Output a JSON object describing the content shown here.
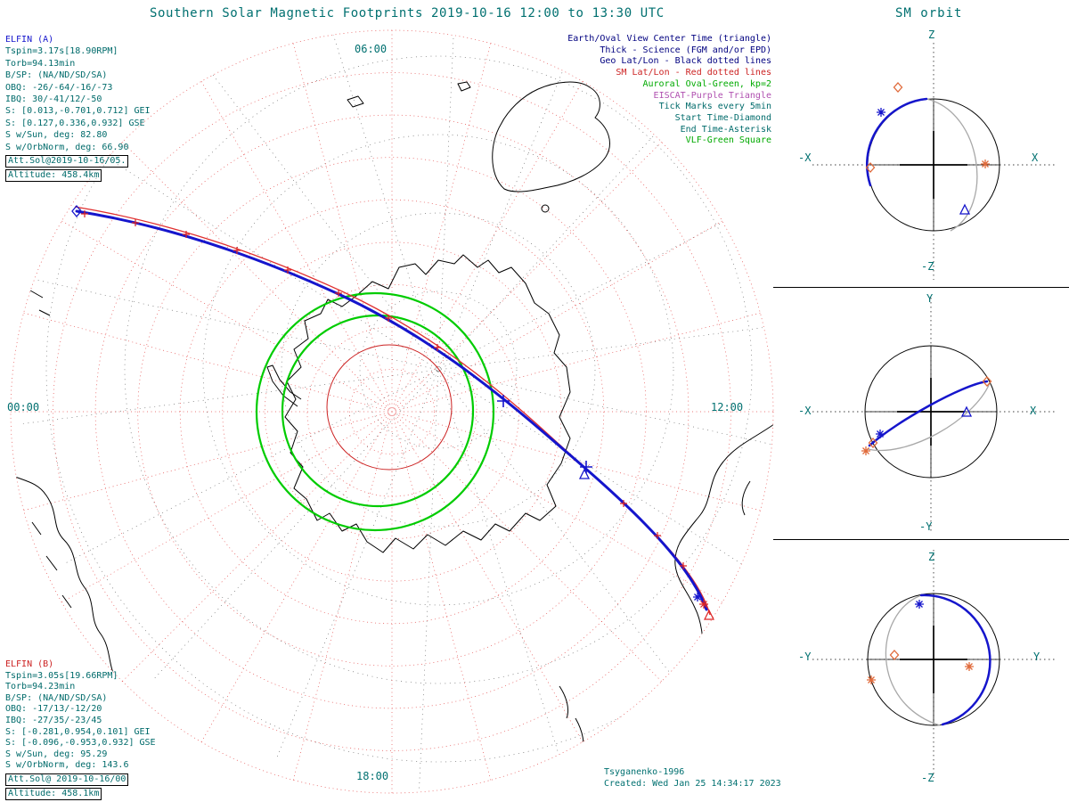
{
  "palette": {
    "teal": "#007070",
    "navy": "#000080",
    "blue": "#1515cc",
    "red": "#cc2222",
    "green": "#00cc00",
    "purple": "#b050b0",
    "gray": "#a8a8a8"
  },
  "header": {
    "title": "Southern Solar Magnetic Footprints 2019-10-16 12:00 to 13:30 UTC",
    "sm_orbit_title": "SM orbit"
  },
  "elfin_a": {
    "name": "ELFIN (A)",
    "lines": [
      "Tspin=3.17s[18.90RPM]",
      "Torb=94.13min",
      "B/SP: (NA/ND/SD/SA)",
      "OBQ: -26/-64/-16/-73",
      "IBQ: 30/-41/12/-50",
      "S: [0.013,-0.701,0.712] GEI",
      "S: [0.127,0.336,0.932] GSE",
      "S w/Sun, deg: 82.80",
      "S w/OrbNorm, deg: 66.90"
    ],
    "att_sol": "Att.Sol@2019-10-16/05.",
    "altitude": "Altitude: 458.4km"
  },
  "elfin_b": {
    "name": "ELFIN (B)",
    "lines": [
      "Tspin=3.05s[19.66RPM]",
      "Torb=94.23min",
      "B/SP: (NA/ND/SD/SA)",
      "OBQ: -17/13/-12/20",
      "IBQ: -27/35/-23/45",
      "S: [-0.281,0.954,0.101] GEI",
      "S: [-0.096,-0.953,0.932] GSE",
      "S w/Sun, deg: 95.29",
      "S w/OrbNorm, deg: 143.6"
    ],
    "att_sol": "Att.Sol@ 2019-10-16/00",
    "altitude": "Altitude: 458.1km"
  },
  "legend": {
    "lines": [
      {
        "text": "Earth/Oval View Center Time (triangle)",
        "color": "#000080"
      },
      {
        "text": "Thick - Science (FGM and/or EPD)",
        "color": "#000080"
      },
      {
        "text": "Geo Lat/Lon - Black dotted lines",
        "color": "#000080"
      },
      {
        "text": "SM Lat/Lon - Red dotted lines",
        "color": "#cc2222"
      },
      {
        "text": "Auroral Oval-Green, kp=2",
        "color": "#00aa00"
      },
      {
        "text": "EISCAT-Purple Triangle",
        "color": "#b050b0"
      },
      {
        "text": "Tick Marks every 5min",
        "color": "#006b6b"
      },
      {
        "text": "Start Time-Diamond",
        "color": "#006b6b"
      },
      {
        "text": "End Time-Asterisk",
        "color": "#006b6b"
      },
      {
        "text": "VLF-Green Square",
        "color": "#00aa00"
      }
    ]
  },
  "map": {
    "mlt_labels": {
      "top": "06:00",
      "left": "00:00",
      "right": "12:00",
      "bottom": "18:00"
    }
  },
  "footer": {
    "model": "Tsyganenko-1996",
    "created": "Created: Wed Jan 25 14:34:17 2023"
  },
  "panels": [
    {
      "top": "Z",
      "bottom": "-Z",
      "left": "-X",
      "right": "X"
    },
    {
      "top": "Y",
      "bottom": "-Y",
      "left": "-X",
      "right": "X"
    },
    {
      "top": "Z",
      "bottom": "-Z",
      "left": "-Y",
      "right": "Y"
    }
  ],
  "chart_data": {
    "type": "line",
    "title": "Southern Solar Magnetic Footprints 2019-10-16 12:00 to 13:30 UTC",
    "projection": "Southern hemisphere polar view, solar magnetic (SM) coordinates",
    "time_range_utc": [
      "12:00",
      "13:30"
    ],
    "mlt_labels": {
      "top": "06:00",
      "left": "00:00",
      "right": "12:00",
      "bottom": "18:00"
    },
    "field_model": "Tsyganenko-1996",
    "series": [
      {
        "name": "ELFIN footprint (thick = science FGM/EPD)",
        "color": "#1515cc",
        "start_marker": "diamond (start time)",
        "end_marker": "asterisk (end time)",
        "tick_marks": "every 5 min",
        "path": "enters dawn/midnight upper-left at 12:00 UTC, crosses auroral oval and polar cap, exits dusk lower-right at 13:30 UTC"
      },
      {
        "name": "ELFIN footprint SM-traced (red)",
        "color": "#e03030"
      }
    ],
    "overlays": [
      {
        "name": "Auroral Oval",
        "kp": 2,
        "color": "#00cc00",
        "shape": "two concentric green ovals"
      },
      {
        "name": "SM Lat/Lon graticule",
        "style": "red dotted circles + radials"
      },
      {
        "name": "Geo Lat/Lon graticule",
        "style": "black dotted circles + radials"
      },
      {
        "name": "Antarctica and surrounding coastlines",
        "style": "black solid"
      }
    ],
    "side_panels": [
      {
        "title": "SM orbit",
        "plane": "X-Z",
        "h_axis": [
          "-X",
          "X"
        ],
        "v_axis": [
          "Z",
          "-Z"
        ]
      },
      {
        "plane": "X-Y",
        "h_axis": [
          "-X",
          "X"
        ],
        "v_axis": [
          "Y",
          "-Y"
        ]
      },
      {
        "plane": "Y-Z",
        "h_axis": [
          "-Y",
          "Y"
        ],
        "v_axis": [
          "Z",
          "-Z"
        ]
      }
    ]
  }
}
